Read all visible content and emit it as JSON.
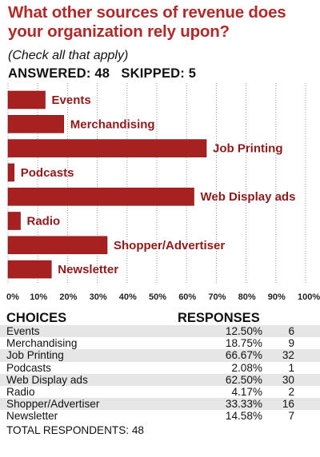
{
  "title": "What other sources of revenue does your organization rely upon?",
  "subtitle": "(Check all that apply)",
  "answered_line": "ANSWERED: 48   SKIPPED: 5",
  "colors": {
    "bar": "#a82121",
    "bar_edge": "#7a1414",
    "title": "#b02a2a",
    "label": "#8e1a1a"
  },
  "chart_data": {
    "type": "bar",
    "orientation": "horizontal",
    "categories": [
      "Events",
      "Merchandising",
      "Job Printing",
      "Podcasts",
      "Web Display ads",
      "Radio",
      "Shopper/Advertiser",
      "Newsletter"
    ],
    "values": [
      12.5,
      18.75,
      66.67,
      2.08,
      62.5,
      4.17,
      33.33,
      14.58
    ],
    "xlim": [
      0,
      100
    ],
    "x_ticks": [
      "0%",
      "10%",
      "20%",
      "30%",
      "40%",
      "50%",
      "60%",
      "70%",
      "80%",
      "90%",
      "100%"
    ],
    "grid": true
  },
  "table": {
    "headers": [
      "CHOICES",
      "RESPONSES"
    ],
    "rows": [
      [
        "Events",
        "12.50%",
        "6"
      ],
      [
        "Merchandising",
        "18.75%",
        "9"
      ],
      [
        "Job Printing",
        "66.67%",
        "32"
      ],
      [
        "Podcasts",
        "2.08%",
        "1"
      ],
      [
        "Web Display ads",
        "62.50%",
        "30"
      ],
      [
        "Radio",
        "4.17%",
        "2"
      ],
      [
        "Shopper/Advertiser",
        "33.33%",
        "16"
      ],
      [
        "Newsletter",
        "14.58%",
        "7"
      ]
    ],
    "total": "TOTAL RESPONDENTS: 48"
  }
}
